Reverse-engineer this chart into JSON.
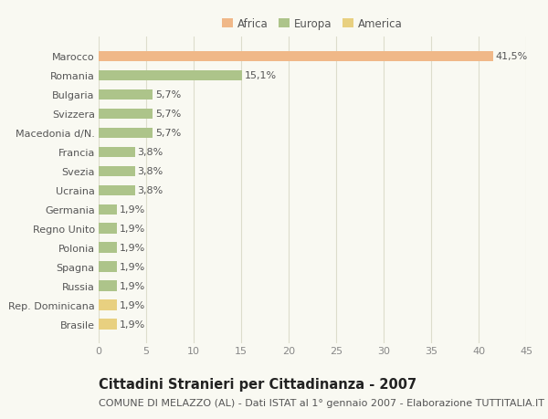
{
  "categories": [
    "Marocco",
    "Romania",
    "Bulgaria",
    "Svizzera",
    "Macedonia d/N.",
    "Francia",
    "Svezia",
    "Ucraina",
    "Germania",
    "Regno Unito",
    "Polonia",
    "Spagna",
    "Russia",
    "Rep. Dominicana",
    "Brasile"
  ],
  "values": [
    41.5,
    15.1,
    5.7,
    5.7,
    5.7,
    3.8,
    3.8,
    3.8,
    1.9,
    1.9,
    1.9,
    1.9,
    1.9,
    1.9,
    1.9
  ],
  "labels": [
    "41,5%",
    "15,1%",
    "5,7%",
    "5,7%",
    "5,7%",
    "3,8%",
    "3,8%",
    "3,8%",
    "1,9%",
    "1,9%",
    "1,9%",
    "1,9%",
    "1,9%",
    "1,9%",
    "1,9%"
  ],
  "colors": [
    "#f0b888",
    "#adc48a",
    "#adc48a",
    "#adc48a",
    "#adc48a",
    "#adc48a",
    "#adc48a",
    "#adc48a",
    "#adc48a",
    "#adc48a",
    "#adc48a",
    "#adc48a",
    "#adc48a",
    "#e8d080",
    "#e8d080"
  ],
  "legend_colors": {
    "Africa": "#f0b888",
    "Europa": "#adc48a",
    "America": "#e8d080"
  },
  "legend_order": [
    "Africa",
    "Europa",
    "America"
  ],
  "title": "Cittadini Stranieri per Cittadinanza - 2007",
  "subtitle": "COMUNE DI MELAZZO (AL) - Dati ISTAT al 1° gennaio 2007 - Elaborazione TUTTITALIA.IT",
  "xlim": [
    0,
    45
  ],
  "xticks": [
    0,
    5,
    10,
    15,
    20,
    25,
    30,
    35,
    40,
    45
  ],
  "background_color": "#f9f9f2",
  "grid_color": "#ddddcc",
  "bar_height": 0.55,
  "title_fontsize": 10.5,
  "subtitle_fontsize": 8,
  "label_fontsize": 8,
  "tick_fontsize": 8,
  "legend_fontsize": 8.5
}
